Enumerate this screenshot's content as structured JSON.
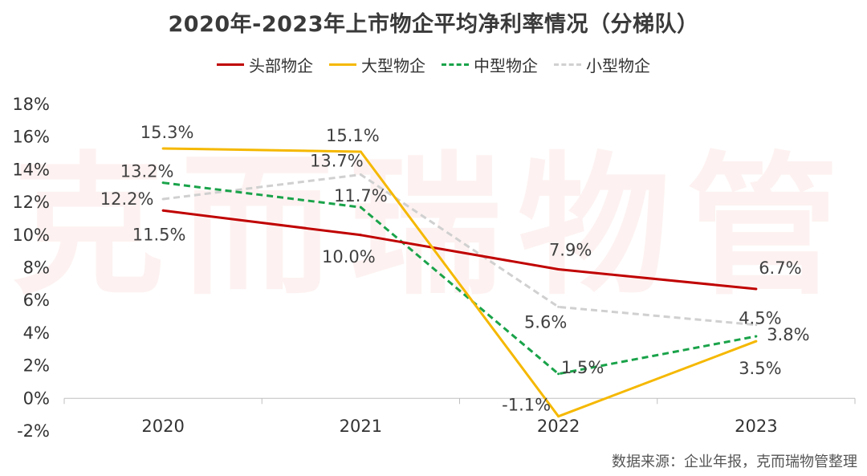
{
  "watermark": "克而瑞物管",
  "source": "数据来源：企业年报，克而瑞物管整理",
  "chart_data": {
    "type": "line",
    "title": "2020年-2023年上市物企平均净利率情况（分梯队）",
    "categories": [
      "2020",
      "2021",
      "2022",
      "2023"
    ],
    "ylim": [
      -2,
      18
    ],
    "ytick_step": 2,
    "yunit": "%",
    "grid": false,
    "legend_position": "top",
    "series": [
      {
        "name": "头部物企",
        "values": [
          11.5,
          10.0,
          7.9,
          6.7
        ],
        "labels": [
          "11.5%",
          "10.0%",
          "7.9%",
          "6.7%"
        ],
        "color": "#c00000",
        "dash": "solid"
      },
      {
        "name": "大型物企",
        "values": [
          15.3,
          15.1,
          -1.1,
          3.5
        ],
        "labels": [
          "15.3%",
          "15.1%",
          "-1.1%",
          "3.5%"
        ],
        "color": "#f5b800",
        "dash": "solid"
      },
      {
        "name": "中型物企",
        "values": [
          13.2,
          11.7,
          1.5,
          3.8
        ],
        "labels": [
          "13.2%",
          "11.7%",
          "1.5%",
          "3.8%"
        ],
        "color": "#1aa34a",
        "dash": "dashed"
      },
      {
        "name": "小型物企",
        "values": [
          12.2,
          13.7,
          5.6,
          4.5
        ],
        "labels": [
          "12.2%",
          "13.7%",
          "5.6%",
          "4.5%"
        ],
        "color": "#d0d0d0",
        "dash": "dashed"
      }
    ]
  }
}
